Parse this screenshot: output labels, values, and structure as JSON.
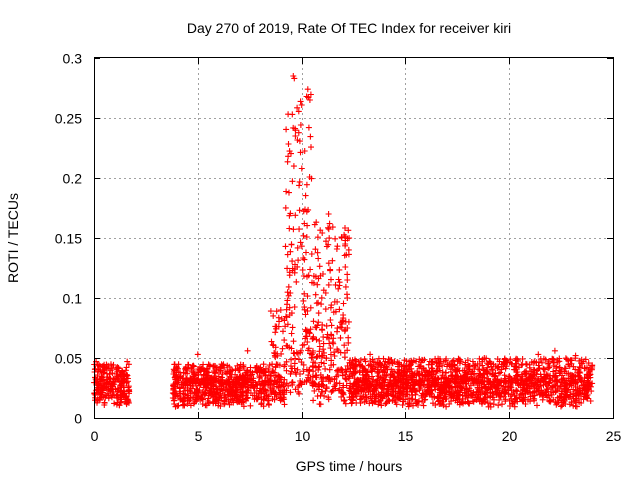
{
  "chart_data": {
    "type": "scatter",
    "title": "Day 270 of 2019, Rate Of TEC Index for receiver kiri",
    "xlabel": "GPS time / hours",
    "ylabel": "ROTI / TECUs",
    "xlim": [
      0,
      25
    ],
    "ylim": [
      0,
      0.3
    ],
    "x_ticks": [
      "0",
      "5",
      "10",
      "15",
      "20",
      "25"
    ],
    "y_ticks": [
      "0",
      "0.05",
      "0.1",
      "0.15",
      "0.2",
      "0.25",
      "0.3"
    ],
    "grid": true,
    "marker": "+",
    "marker_color": "#ff0000",
    "series": [
      {
        "name": "ROTI",
        "profile_note": "Dense scatter; hour x, ROTI range [low, high] per sample band; gap from 1.7 to 3.8 h",
        "bands": [
          {
            "x0": 0.0,
            "x1": 1.7,
            "low": 0.004,
            "high": 0.045
          },
          {
            "x0": 3.8,
            "x1": 8.5,
            "low": 0.003,
            "high": 0.045
          },
          {
            "x0": 8.5,
            "x1": 9.2,
            "low": 0.005,
            "high": 0.09
          },
          {
            "x0": 9.2,
            "x1": 9.8,
            "low": 0.01,
            "high": 0.28
          },
          {
            "x0": 9.8,
            "x1": 10.5,
            "low": 0.01,
            "high": 0.27
          },
          {
            "x0": 10.5,
            "x1": 12.3,
            "low": 0.005,
            "high": 0.17
          },
          {
            "x0": 12.3,
            "x1": 24.0,
            "low": 0.003,
            "high": 0.05
          }
        ],
        "highlights": [
          {
            "x": 9.6,
            "y": 0.285
          },
          {
            "x": 9.65,
            "y": 0.283
          },
          {
            "x": 10.3,
            "y": 0.274
          },
          {
            "x": 10.4,
            "y": 0.265
          },
          {
            "x": 9.55,
            "y": 0.253
          },
          {
            "x": 10.35,
            "y": 0.242
          },
          {
            "x": 9.7,
            "y": 0.235
          },
          {
            "x": 11.3,
            "y": 0.17
          },
          {
            "x": 11.35,
            "y": 0.162
          },
          {
            "x": 12.1,
            "y": 0.151
          },
          {
            "x": 12.1,
            "y": 0.145
          },
          {
            "x": 12.2,
            "y": 0.115
          },
          {
            "x": 12.2,
            "y": 0.1
          },
          {
            "x": 12.2,
            "y": 0.075
          },
          {
            "x": 9.0,
            "y": 0.09
          },
          {
            "x": 8.8,
            "y": 0.089
          },
          {
            "x": 7.4,
            "y": 0.056
          },
          {
            "x": 13.3,
            "y": 0.053
          },
          {
            "x": 15.3,
            "y": 0.047
          },
          {
            "x": 18.8,
            "y": 0.05
          },
          {
            "x": 21.4,
            "y": 0.053
          },
          {
            "x": 22.2,
            "y": 0.056
          },
          {
            "x": 23.2,
            "y": 0.052
          },
          {
            "x": 24.0,
            "y": 0.044
          },
          {
            "x": 5.0,
            "y": 0.053
          },
          {
            "x": 0.1,
            "y": 0.047
          },
          {
            "x": 1.6,
            "y": 0.047
          }
        ]
      }
    ]
  }
}
